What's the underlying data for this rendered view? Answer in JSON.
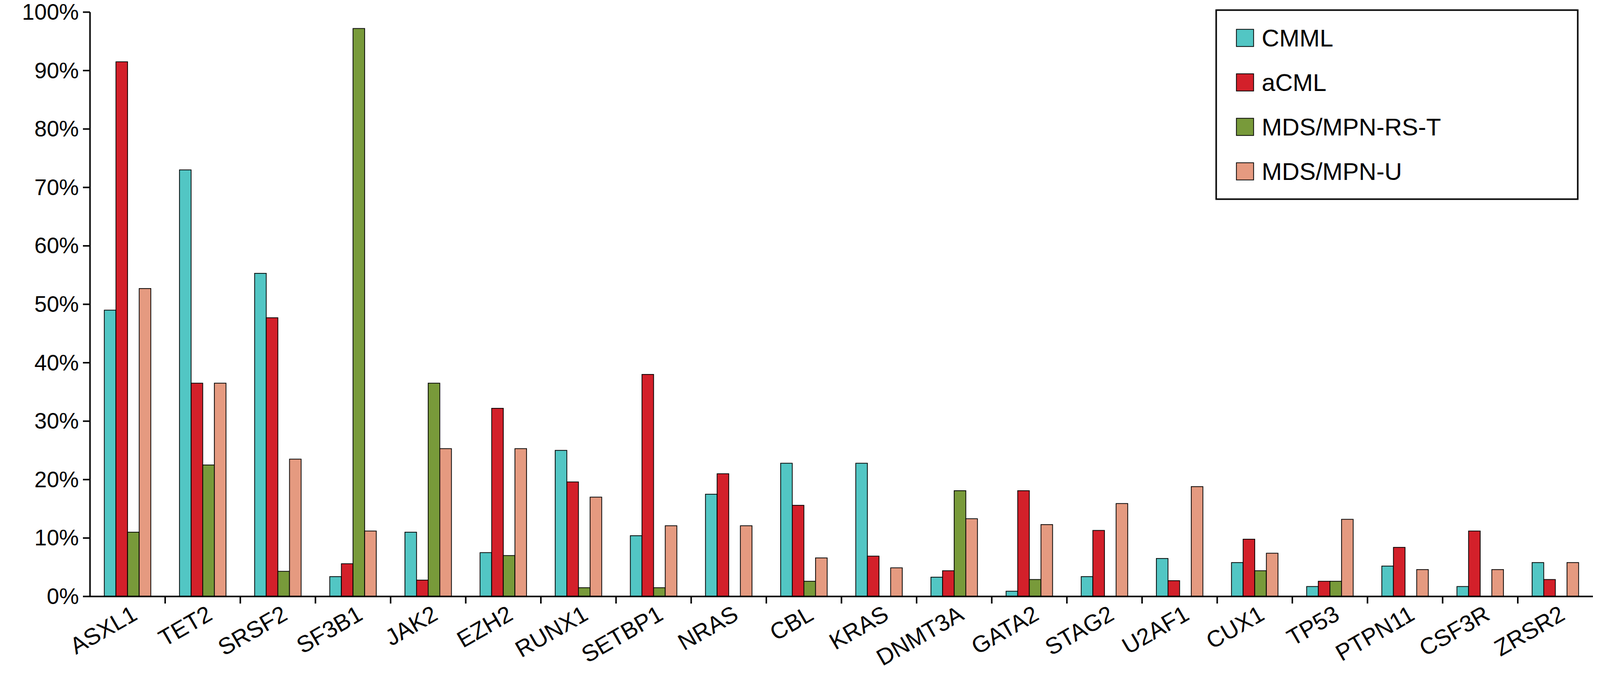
{
  "chart_data": {
    "type": "bar",
    "categories": [
      "ASXL1",
      "TET2",
      "SRSF2",
      "SF3B1",
      "JAK2",
      "EZH2",
      "RUNX1",
      "SETBP1",
      "NRAS",
      "CBL",
      "KRAS",
      "DNMT3A",
      "GATA2",
      "STAG2",
      "U2AF1",
      "CUX1",
      "TP53",
      "PTPN11",
      "CSF3R",
      "ZRSR2"
    ],
    "series": [
      {
        "name": "CMML",
        "color": "#52c6c4",
        "values": [
          49,
          73,
          55.3,
          3.4,
          11,
          7.5,
          25,
          10.4,
          17.5,
          22.8,
          22.8,
          3.3,
          0.9,
          3.4,
          6.5,
          5.8,
          1.7,
          5.2,
          1.7,
          5.8
        ]
      },
      {
        "name": "aCML",
        "color": "#d3202a",
        "values": [
          91.5,
          36.5,
          47.7,
          5.6,
          2.8,
          32.2,
          19.6,
          38,
          21,
          15.6,
          6.9,
          4.4,
          18.1,
          11.3,
          2.7,
          9.8,
          2.6,
          8.4,
          11.2,
          2.9
        ]
      },
      {
        "name": "MDS/MPN-RS-T",
        "color": "#789a3a",
        "values": [
          11,
          22.5,
          4.3,
          97.2,
          36.5,
          7,
          1.5,
          1.5,
          0,
          2.6,
          0,
          18.1,
          2.9,
          0,
          0,
          4.4,
          2.6,
          0,
          0,
          0
        ]
      },
      {
        "name": "MDS/MPN-U",
        "color": "#e59a80",
        "values": [
          52.7,
          36.5,
          23.5,
          11.2,
          25.3,
          25.3,
          17,
          12.1,
          12.1,
          6.6,
          4.9,
          13.3,
          12.3,
          15.9,
          18.8,
          7.4,
          13.2,
          4.6,
          4.6,
          5.8
        ]
      }
    ],
    "ylim": [
      0,
      100
    ],
    "yticks": [
      {
        "value": 0,
        "label": "0%"
      },
      {
        "value": 10,
        "label": "10%"
      },
      {
        "value": 20,
        "label": "20%"
      },
      {
        "value": 30,
        "label": "30%"
      },
      {
        "value": 40,
        "label": "40%"
      },
      {
        "value": 50,
        "label": "50%"
      },
      {
        "value": 60,
        "label": "60%"
      },
      {
        "value": 70,
        "label": "70%"
      },
      {
        "value": 80,
        "label": "80%"
      },
      {
        "value": 90,
        "label": "90%"
      },
      {
        "value": 100,
        "label": "100%"
      }
    ],
    "grid": false,
    "legend": "top-right"
  }
}
